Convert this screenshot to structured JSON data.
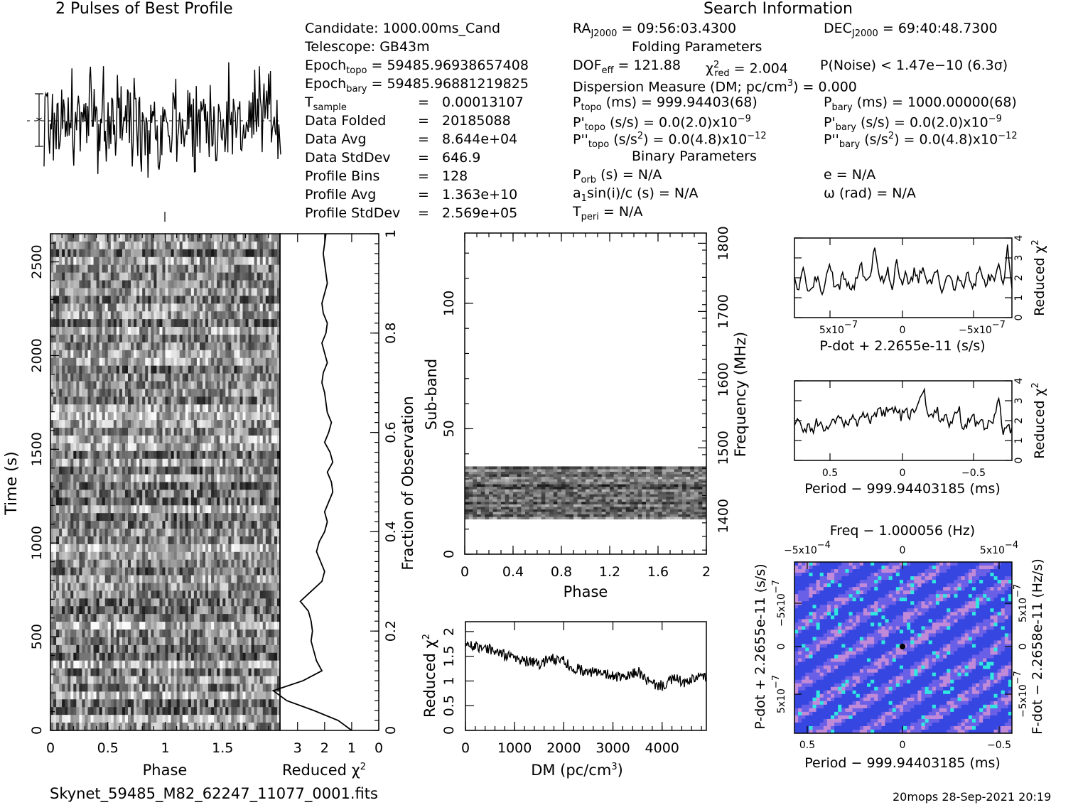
{
  "header": {
    "profile_title": "2 Pulses of Best Profile",
    "search_title": "Search Information",
    "filename": "Skynet_59485_M82_62247_11077_0001.fits",
    "footer": "20mops  28-Sep-2021 20:19"
  },
  "info": {
    "candidate": "Candidate:  1000.00ms_Cand",
    "telescope": "Telescope:  GB43m",
    "epoch_topo_label": "Epoch",
    "epoch_topo_sub": "topo",
    "epoch_topo_val": "= 59485.96938657408",
    "epoch_bary_label": "Epoch",
    "epoch_bary_sub": "bary",
    "epoch_bary_val": "= 59485.9688121​9825",
    "tsample_label": "T",
    "tsample_sub": "sample",
    "tsample_eq": "=",
    "tsample_val": "0.00013107",
    "rows": [
      {
        "label": "Data Folded",
        "eq": "=",
        "val": "20185088"
      },
      {
        "label": "Data Avg",
        "eq": "=",
        "val": "8.644e+04"
      },
      {
        "label": "Data StdDev",
        "eq": "=",
        "val": "646.9"
      },
      {
        "label": "Profile Bins",
        "eq": "=",
        "val": "128"
      },
      {
        "label": "Profile Avg",
        "eq": "=",
        "val": "1.363e+10"
      },
      {
        "label": "Profile StdDev",
        "eq": "=",
        "val": "2.569e+05"
      }
    ],
    "ra_label": "RA",
    "ra_sub": "J2000",
    "ra_val": "= 09:56:03.4300",
    "dec_label": "DEC",
    "dec_sub": "J2000",
    "dec_val": "= 69:40:48.7300",
    "folding_title": "Folding Parameters",
    "dof_label": "DOF",
    "dof_sub": "eff",
    "dof_val": "= 121.88",
    "chi_label": "χ",
    "chi_sup": "2",
    "chi_sub": "red",
    "chi_val": "= 2.004",
    "pnoise": "P(Noise) < 1.47e−10   (6.3σ)",
    "dm_line": "Dispersion Measure (DM; pc/cm",
    "dm_sup": "3",
    "dm_val": ") = 0.000",
    "ptopo_label": "P",
    "ptopo_sub": "topo",
    "ptopo_val": " (ms) =  999.94403(68)",
    "pbary_label": "P",
    "pbary_sub": "bary",
    "pbary_val": " (ms) =  1000.00000(68)",
    "pdtopo_label": "P'",
    "pdtopo_sub": "topo",
    "pdtopo_val": " (s/s) = 0.0(2.0)x10",
    "pdtopo_exp": "−9",
    "pdbary_label": "P'",
    "pdbary_sub": "bary",
    "pdbary_val": " (s/s) = 0.0(2.0)x10",
    "pdbary_exp": "−9",
    "pddtopo_label": "P''",
    "pddtopo_sub": "topo",
    "pddtopo_val": " (s/s",
    "pddtopo_sup": "2",
    "pddtopo_val2": ") = 0.0(4.8)x10",
    "pddtopo_exp": "−12",
    "pddbary_label": "P''",
    "pddbary_sub": "bary",
    "pddbary_val": " (s/s",
    "pddbary_sup": "2",
    "pddbary_val2": ") = 0.0(4.8)x10",
    "pddbary_exp": "−12",
    "binary_title": "Binary Parameters",
    "porb_label": "P",
    "porb_sub": "orb",
    "porb_val": " (s) = N/A",
    "ecc": "e = N/A",
    "a1sini": "a",
    "a1_sub": "1",
    "a1_val": "sin(i)/c (s) = N/A",
    "omega": "ω (rad) = N/A",
    "tperi_label": "T",
    "tperi_sub": "peri",
    "tperi_val": " = N/A"
  },
  "chart_data": [
    {
      "type": "line",
      "name": "profile",
      "title": "2 Pulses of Best Profile",
      "note": "profile shown as noisy trace over two pulses; no axes printed"
    },
    {
      "type": "heatmap",
      "name": "time-phase",
      "xlabel": "Phase",
      "ylabel": "Time (s)",
      "xlim": [
        0,
        2
      ],
      "ylim": [
        0,
        2650
      ],
      "x_ticks": [
        "0",
        "0.5",
        "1",
        "1.5"
      ],
      "y_ticks": [
        "0",
        "500",
        "1000",
        "1500",
        "2000",
        "2500"
      ]
    },
    {
      "type": "line",
      "name": "time-chi2",
      "xlabel": "Reduced χ",
      "xlabel_sup": "2",
      "ylabel": "Fraction of Observation",
      "x_ticks": [
        "3",
        "2",
        "1",
        "0"
      ],
      "y_ticks": [
        "0",
        "0.2",
        "0.4",
        "0.6",
        "0.8",
        "1"
      ],
      "fraction": [
        0,
        0.02,
        0.04,
        0.06,
        0.08,
        0.1,
        0.12,
        0.14,
        0.16,
        0.18,
        0.2,
        0.22,
        0.24,
        0.26,
        0.28,
        0.3,
        0.32,
        0.34,
        0.36,
        0.38,
        0.4,
        0.42,
        0.44,
        0.46,
        0.48,
        0.5,
        0.52,
        0.54,
        0.56,
        0.58,
        0.6,
        0.62,
        0.64,
        0.66,
        0.68,
        0.7,
        0.72,
        0.74,
        0.76,
        0.78,
        0.8,
        0.82,
        0.84,
        0.86,
        0.88,
        0.9,
        0.92,
        0.94,
        0.96,
        0.98,
        1.0
      ],
      "chi2": [
        1.0,
        1.5,
        2.4,
        3.4,
        3.9,
        2.8,
        2.1,
        2.3,
        2.4,
        2.5,
        2.45,
        2.5,
        2.6,
        2.9,
        2.5,
        2.1,
        2.0,
        2.15,
        2.3,
        2.2,
        2.0,
        1.9,
        2.0,
        1.85,
        1.7,
        1.75,
        1.9,
        1.7,
        1.8,
        2.0,
        1.85,
        1.75,
        1.9,
        1.95,
        2.0,
        2.1,
        2.05,
        1.9,
        2.0,
        2.1,
        1.95,
        1.9,
        2.05,
        2.1,
        2.0,
        1.9,
        1.95,
        2.0,
        2.05,
        2.0,
        1.95
      ]
    },
    {
      "type": "heatmap",
      "name": "subband-phase",
      "xlabel": "Phase",
      "ylabel": "Sub-band",
      "ylabel_right": "Frequency (MHz)",
      "xlim": [
        0,
        2
      ],
      "ylim": [
        0,
        128
      ],
      "x_ticks": [
        "0",
        "0.4",
        "0.8",
        "1.2",
        "1.6",
        "2"
      ],
      "y_ticks": [
        "0",
        "50",
        "100"
      ],
      "y_ticks_right": [
        "1400",
        "1500",
        "1600",
        "1700",
        "1800"
      ],
      "filled_subbands": [
        14,
        35
      ]
    },
    {
      "type": "line",
      "name": "dm-chi2",
      "xlabel": "DM (pc/cm",
      "xlabel_sup": "3",
      "xlabel_end": ")",
      "ylabel": "Reduced χ",
      "ylabel_sup": "2",
      "x_ticks": [
        "0",
        "1000",
        "2000",
        "3000",
        "4000"
      ],
      "y_ticks": [
        "0",
        "0.5",
        "1",
        "1.5",
        "2"
      ],
      "xlim": [
        0,
        4900
      ],
      "ylim": [
        0,
        2.2
      ],
      "dm": [
        0,
        250,
        500,
        750,
        1000,
        1250,
        1500,
        1750,
        2000,
        2250,
        2500,
        2750,
        3000,
        3250,
        3500,
        3750,
        4000,
        4250,
        4500,
        4750,
        4900
      ],
      "chi2": [
        1.75,
        1.7,
        1.65,
        1.55,
        1.45,
        1.4,
        1.35,
        1.45,
        1.4,
        1.25,
        1.2,
        1.15,
        1.1,
        1.05,
        1.2,
        0.95,
        0.9,
        1.05,
        0.95,
        1.1,
        1.05
      ]
    },
    {
      "type": "line",
      "name": "pdot-chi2",
      "xlabel": "P-dot + 2.2655e-11 (s/s)",
      "ylabel": "Reduced χ",
      "ylabel_sup": "2",
      "x_ticks": [
        "5x10",
        "0",
        "−5x10"
      ],
      "x_tick_exp": "−7",
      "y_ticks": [
        "0",
        "1",
        "2",
        "3",
        "4"
      ],
      "ylim": [
        0,
        4
      ],
      "values": [
        1.8,
        1.5,
        2.4,
        1.3,
        1.6,
        2.1,
        1.2,
        1.9,
        2.5,
        1.7,
        1.4,
        2.2,
        1.6,
        1.3,
        2.0,
        2.8,
        1.6,
        1.9,
        3.6,
        2.2,
        1.8,
        2.6,
        1.4,
        3.0,
        1.7,
        2.1,
        1.5,
        2.4,
        1.9,
        2.7,
        1.6,
        1.8,
        2.5,
        1.3,
        1.7,
        2.2,
        1.5,
        2.0,
        1.6,
        2.3,
        1.4,
        1.9,
        2.6,
        1.5,
        2.1,
        1.7,
        2.8,
        1.4,
        3.8,
        1.6
      ]
    },
    {
      "type": "line",
      "name": "period-chi2",
      "xlabel": "Period − 999.94403185 (ms)",
      "ylabel": "Reduced χ",
      "ylabel_sup": "2",
      "x_ticks": [
        "0.5",
        "0",
        "−0.5"
      ],
      "y_ticks": [
        "0",
        "1",
        "2",
        "3",
        "4"
      ],
      "ylim": [
        0,
        4
      ],
      "values": [
        1.6,
        2.1,
        1.4,
        1.8,
        1.5,
        1.9,
        1.7,
        1.6,
        2.0,
        1.8,
        2.2,
        1.7,
        1.9,
        2.3,
        1.8,
        2.1,
        2.4,
        2.0,
        2.2,
        2.6,
        2.3,
        2.5,
        2.4,
        2.7,
        2.2,
        2.5,
        2.3,
        2.6,
        2.8,
        3.7,
        2.4,
        2.2,
        2.6,
        2.0,
        2.3,
        1.8,
        2.1,
        2.7,
        1.6,
        1.9,
        2.4,
        1.7,
        2.2,
        1.5,
        1.9,
        2.0,
        3.0,
        1.5,
        1.8,
        1.4
      ]
    },
    {
      "type": "heatmap",
      "name": "period-pdot",
      "title": "Freq − 1.000056 (Hz)",
      "xlabel": "Period − 999.94403185 (ms)",
      "ylabel": "P-dot + 2.2655e-11 (s/s)",
      "ylabel_right": "F-dot − 2.2658e-11 (Hz/s)",
      "x_ticks": [
        "0.5",
        "0",
        "−0.5"
      ],
      "top_ticks": [
        "−5x10",
        "0",
        "5x10"
      ],
      "top_tick_exp": "−4",
      "y_ticks": [
        "−5x10",
        "0",
        "5x10"
      ],
      "y_tick_exp": "−7",
      "y_ticks_right": [
        "5x10",
        "0",
        "−5x10"
      ],
      "y_tick_right_exp": "−7"
    }
  ],
  "colors": {
    "foreground": "#000000",
    "ppdot_base": "#3a4de0",
    "ppdot_hi": "#20e0e0"
  }
}
